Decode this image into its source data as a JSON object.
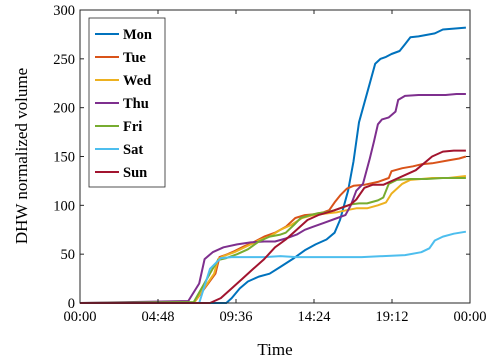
{
  "chart_data": {
    "type": "line",
    "xlabel": "Time",
    "ylabel": "DHW normalized volume",
    "xlim": [
      0,
      1440
    ],
    "ylim": [
      0,
      300
    ],
    "xticks": [
      {
        "value": 0,
        "label": "00:00"
      },
      {
        "value": 288,
        "label": "04:48"
      },
      {
        "value": 576,
        "label": "09:36"
      },
      {
        "value": 864,
        "label": "14:24"
      },
      {
        "value": 1152,
        "label": "19:12"
      },
      {
        "value": 1440,
        "label": "00:00"
      }
    ],
    "yticks": [
      0,
      50,
      100,
      150,
      200,
      250,
      300
    ],
    "grid": false,
    "legend_position": "top-left",
    "series": [
      {
        "name": "Mon",
        "color": "#0072BD",
        "points": [
          [
            0,
            0
          ],
          [
            420,
            0
          ],
          [
            540,
            0
          ],
          [
            560,
            5
          ],
          [
            590,
            15
          ],
          [
            620,
            22
          ],
          [
            660,
            27
          ],
          [
            700,
            30
          ],
          [
            740,
            37
          ],
          [
            790,
            46
          ],
          [
            830,
            54
          ],
          [
            870,
            60
          ],
          [
            910,
            65
          ],
          [
            940,
            72
          ],
          [
            960,
            85
          ],
          [
            990,
            115
          ],
          [
            1010,
            145
          ],
          [
            1030,
            185
          ],
          [
            1050,
            205
          ],
          [
            1070,
            225
          ],
          [
            1090,
            245
          ],
          [
            1110,
            250
          ],
          [
            1130,
            252
          ],
          [
            1150,
            255
          ],
          [
            1180,
            258
          ],
          [
            1200,
            265
          ],
          [
            1220,
            272
          ],
          [
            1250,
            273
          ],
          [
            1290,
            275
          ],
          [
            1310,
            276
          ],
          [
            1340,
            280
          ],
          [
            1380,
            281
          ],
          [
            1425,
            282
          ]
        ]
      },
      {
        "name": "Tue",
        "color": "#D95319",
        "points": [
          [
            0,
            0
          ],
          [
            420,
            0
          ],
          [
            500,
            30
          ],
          [
            515,
            47
          ],
          [
            545,
            50
          ],
          [
            570,
            53
          ],
          [
            605,
            58
          ],
          [
            640,
            62
          ],
          [
            680,
            68
          ],
          [
            720,
            72
          ],
          [
            760,
            78
          ],
          [
            795,
            87
          ],
          [
            830,
            90
          ],
          [
            870,
            91
          ],
          [
            900,
            93
          ],
          [
            920,
            95
          ],
          [
            940,
            103
          ],
          [
            960,
            110
          ],
          [
            985,
            117
          ],
          [
            1010,
            120
          ],
          [
            1050,
            121
          ],
          [
            1100,
            124
          ],
          [
            1140,
            128
          ],
          [
            1150,
            135
          ],
          [
            1190,
            138
          ],
          [
            1230,
            140
          ],
          [
            1260,
            142
          ],
          [
            1300,
            143
          ],
          [
            1360,
            146
          ],
          [
            1400,
            148
          ],
          [
            1425,
            150
          ]
        ]
      },
      {
        "name": "Wed",
        "color": "#EDB120",
        "points": [
          [
            0,
            0
          ],
          [
            420,
            0
          ],
          [
            495,
            30
          ],
          [
            510,
            45
          ],
          [
            530,
            48
          ],
          [
            570,
            52
          ],
          [
            615,
            58
          ],
          [
            660,
            64
          ],
          [
            700,
            68
          ],
          [
            740,
            75
          ],
          [
            780,
            80
          ],
          [
            820,
            87
          ],
          [
            860,
            90
          ],
          [
            890,
            91
          ],
          [
            920,
            92
          ],
          [
            950,
            93
          ],
          [
            985,
            95
          ],
          [
            1020,
            97
          ],
          [
            1060,
            97
          ],
          [
            1100,
            100
          ],
          [
            1130,
            103
          ],
          [
            1150,
            112
          ],
          [
            1190,
            122
          ],
          [
            1220,
            126
          ],
          [
            1260,
            127
          ],
          [
            1300,
            128
          ],
          [
            1360,
            128
          ],
          [
            1425,
            130
          ]
        ]
      },
      {
        "name": "Thu",
        "color": "#7E2F8E",
        "points": [
          [
            0,
            0
          ],
          [
            400,
            2
          ],
          [
            440,
            20
          ],
          [
            460,
            45
          ],
          [
            490,
            52
          ],
          [
            530,
            57
          ],
          [
            580,
            60
          ],
          [
            630,
            62
          ],
          [
            680,
            63
          ],
          [
            720,
            63
          ],
          [
            760,
            66
          ],
          [
            800,
            70
          ],
          [
            830,
            75
          ],
          [
            860,
            78
          ],
          [
            900,
            82
          ],
          [
            940,
            86
          ],
          [
            980,
            90
          ],
          [
            1000,
            100
          ],
          [
            1020,
            115
          ],
          [
            1045,
            122
          ],
          [
            1070,
            148
          ],
          [
            1085,
            165
          ],
          [
            1100,
            183
          ],
          [
            1115,
            188
          ],
          [
            1140,
            190
          ],
          [
            1165,
            196
          ],
          [
            1175,
            208
          ],
          [
            1200,
            212
          ],
          [
            1250,
            213
          ],
          [
            1300,
            213
          ],
          [
            1350,
            213
          ],
          [
            1390,
            214
          ],
          [
            1425,
            214
          ]
        ]
      },
      {
        "name": "Fri",
        "color": "#77AC30",
        "points": [
          [
            0,
            0
          ],
          [
            420,
            1
          ],
          [
            490,
            35
          ],
          [
            510,
            44
          ],
          [
            540,
            46
          ],
          [
            580,
            50
          ],
          [
            620,
            55
          ],
          [
            660,
            63
          ],
          [
            700,
            68
          ],
          [
            740,
            70
          ],
          [
            760,
            72
          ],
          [
            790,
            80
          ],
          [
            815,
            87
          ],
          [
            850,
            90
          ],
          [
            880,
            92
          ],
          [
            910,
            93
          ],
          [
            940,
            95
          ],
          [
            970,
            98
          ],
          [
            1000,
            101
          ],
          [
            1030,
            102
          ],
          [
            1060,
            102
          ],
          [
            1100,
            105
          ],
          [
            1120,
            108
          ],
          [
            1140,
            122
          ],
          [
            1170,
            126
          ],
          [
            1220,
            127
          ],
          [
            1280,
            127
          ],
          [
            1340,
            128
          ],
          [
            1425,
            128
          ]
        ]
      },
      {
        "name": "Sat",
        "color": "#4DBEEE",
        "points": [
          [
            0,
            0
          ],
          [
            440,
            0
          ],
          [
            480,
            35
          ],
          [
            520,
            46
          ],
          [
            560,
            47
          ],
          [
            620,
            47
          ],
          [
            680,
            47
          ],
          [
            740,
            48
          ],
          [
            800,
            47
          ],
          [
            880,
            47
          ],
          [
            960,
            47
          ],
          [
            1040,
            47
          ],
          [
            1120,
            48
          ],
          [
            1200,
            49
          ],
          [
            1260,
            52
          ],
          [
            1290,
            56
          ],
          [
            1310,
            64
          ],
          [
            1340,
            68
          ],
          [
            1380,
            71
          ],
          [
            1425,
            73
          ]
        ]
      },
      {
        "name": "Sun",
        "color": "#A2142F",
        "points": [
          [
            0,
            0
          ],
          [
            480,
            0
          ],
          [
            520,
            5
          ],
          [
            560,
            15
          ],
          [
            600,
            25
          ],
          [
            640,
            35
          ],
          [
            680,
            45
          ],
          [
            720,
            57
          ],
          [
            760,
            65
          ],
          [
            800,
            75
          ],
          [
            840,
            85
          ],
          [
            880,
            90
          ],
          [
            930,
            94
          ],
          [
            970,
            98
          ],
          [
            1000,
            101
          ],
          [
            1020,
            106
          ],
          [
            1050,
            118
          ],
          [
            1080,
            121
          ],
          [
            1120,
            121
          ],
          [
            1160,
            126
          ],
          [
            1200,
            131
          ],
          [
            1240,
            136
          ],
          [
            1270,
            143
          ],
          [
            1300,
            150
          ],
          [
            1340,
            155
          ],
          [
            1380,
            156
          ],
          [
            1425,
            156
          ]
        ]
      }
    ]
  }
}
